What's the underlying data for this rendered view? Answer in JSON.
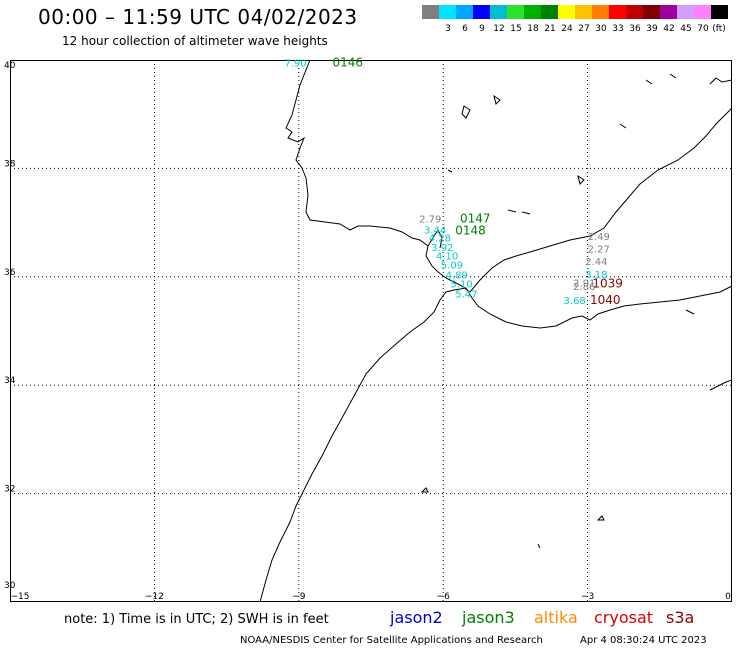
{
  "header": {
    "title": "00:00 – 11:59 UTC 04/02/2023",
    "subtitle": "12 hour collection of altimeter wave heights"
  },
  "legend": {
    "unit": "(ft)",
    "bins": [
      {
        "label": "",
        "color": "#808080"
      },
      {
        "label": "3",
        "color": "#00e5ff"
      },
      {
        "label": "6",
        "color": "#00a8ff"
      },
      {
        "label": "9",
        "color": "#0000ff"
      },
      {
        "label": "12",
        "color": "#00c0d0"
      },
      {
        "label": "15",
        "color": "#30e030"
      },
      {
        "label": "18",
        "color": "#00b000"
      },
      {
        "label": "21",
        "color": "#008000"
      },
      {
        "label": "24",
        "color": "#ffff00"
      },
      {
        "label": "27",
        "color": "#ffc000"
      },
      {
        "label": "30",
        "color": "#ff8000"
      },
      {
        "label": "33",
        "color": "#ff0000"
      },
      {
        "label": "36",
        "color": "#c00000"
      },
      {
        "label": "39",
        "color": "#800000"
      },
      {
        "label": "42",
        "color": "#a000a0"
      },
      {
        "label": "45",
        "color": "#d0a0ff"
      },
      {
        "label": "70",
        "color": "#ff80ff"
      },
      {
        "label": "",
        "color": "#000000"
      }
    ]
  },
  "map": {
    "lon_range": [
      -15,
      0
    ],
    "lat_range": [
      30,
      40
    ],
    "lon_ticks": [
      {
        "value": -15,
        "label": "−15"
      },
      {
        "value": -12,
        "label": "−12"
      },
      {
        "value": -9,
        "label": "−9"
      },
      {
        "value": -6,
        "label": "−6"
      },
      {
        "value": -3,
        "label": "−3"
      },
      {
        "value": 0,
        "label": "0"
      }
    ],
    "lat_ticks": [
      {
        "value": 30,
        "label": "30"
      },
      {
        "value": 32,
        "label": "32"
      },
      {
        "value": 34,
        "label": "34"
      },
      {
        "value": 36,
        "label": "36"
      },
      {
        "value": 38,
        "label": "38"
      },
      {
        "value": 40,
        "label": "40"
      }
    ],
    "pass_labels": [
      {
        "text": "0146",
        "lon": -8.3,
        "lat": 39.88,
        "color": "#008000"
      },
      {
        "text": "0147",
        "lon": -5.65,
        "lat": 37.0,
        "color": "#008000"
      },
      {
        "text": "0148",
        "lon": -5.75,
        "lat": 36.78,
        "color": "#008000"
      },
      {
        "text": "1039",
        "lon": -2.9,
        "lat": 35.8,
        "color": "#8b0000"
      },
      {
        "text": "1040",
        "lon": -2.95,
        "lat": 35.5,
        "color": "#8b0000"
      }
    ],
    "observations": [
      {
        "swh": "7.90",
        "lon": -9.3,
        "lat": 39.88,
        "color": "#00cccc"
      },
      {
        "swh": "2.79",
        "lon": -6.5,
        "lat": 37.0,
        "color": "#808080"
      },
      {
        "swh": "3.44",
        "lon": -6.4,
        "lat": 36.8,
        "color": "#00cccc"
      },
      {
        "swh": "4.28",
        "lon": -6.3,
        "lat": 36.65,
        "color": "#00cccc"
      },
      {
        "swh": "3.92",
        "lon": -6.25,
        "lat": 36.48,
        "color": "#00cccc"
      },
      {
        "swh": "4.10",
        "lon": -6.15,
        "lat": 36.32,
        "color": "#00cccc"
      },
      {
        "swh": "5.09",
        "lon": -6.05,
        "lat": 36.15,
        "color": "#00cccc"
      },
      {
        "swh": "4.89",
        "lon": -5.95,
        "lat": 35.97,
        "color": "#00cccc"
      },
      {
        "swh": "5.10",
        "lon": -5.85,
        "lat": 35.8,
        "color": "#00cccc"
      },
      {
        "swh": "5.47",
        "lon": -5.75,
        "lat": 35.62,
        "color": "#00cccc"
      },
      {
        "swh": "2.49",
        "lon": -3.0,
        "lat": 36.68,
        "color": "#808080"
      },
      {
        "swh": "2.27",
        "lon": -3.0,
        "lat": 36.45,
        "color": "#808080"
      },
      {
        "swh": "2.44",
        "lon": -3.05,
        "lat": 36.22,
        "color": "#808080"
      },
      {
        "swh": "3.18",
        "lon": -3.05,
        "lat": 35.98,
        "color": "#00cccc"
      },
      {
        "swh": "2.91",
        "lon": -3.3,
        "lat": 35.82,
        "color": "#808080"
      },
      {
        "swh": "2.86",
        "lon": -3.3,
        "lat": 35.76,
        "color": "#808080"
      },
      {
        "swh": "3.68",
        "lon": -3.5,
        "lat": 35.5,
        "color": "#00cccc"
      }
    ]
  },
  "footer": {
    "note": "note: 1) Time is in UTC; 2) SWH is in feet",
    "satellites": [
      {
        "name": "jason2",
        "color": "#0000cc"
      },
      {
        "name": "jason3",
        "color": "#008000"
      },
      {
        "name": "altika",
        "color": "#ff8c00"
      },
      {
        "name": "cryosat",
        "color": "#dd0000"
      },
      {
        "name": "s3a",
        "color": "#8b0000"
      }
    ],
    "credit": "NOAA/NESDIS Center for Satellite Applications and Research",
    "timestamp": "Apr  4 08:30:24 UTC 2023"
  }
}
